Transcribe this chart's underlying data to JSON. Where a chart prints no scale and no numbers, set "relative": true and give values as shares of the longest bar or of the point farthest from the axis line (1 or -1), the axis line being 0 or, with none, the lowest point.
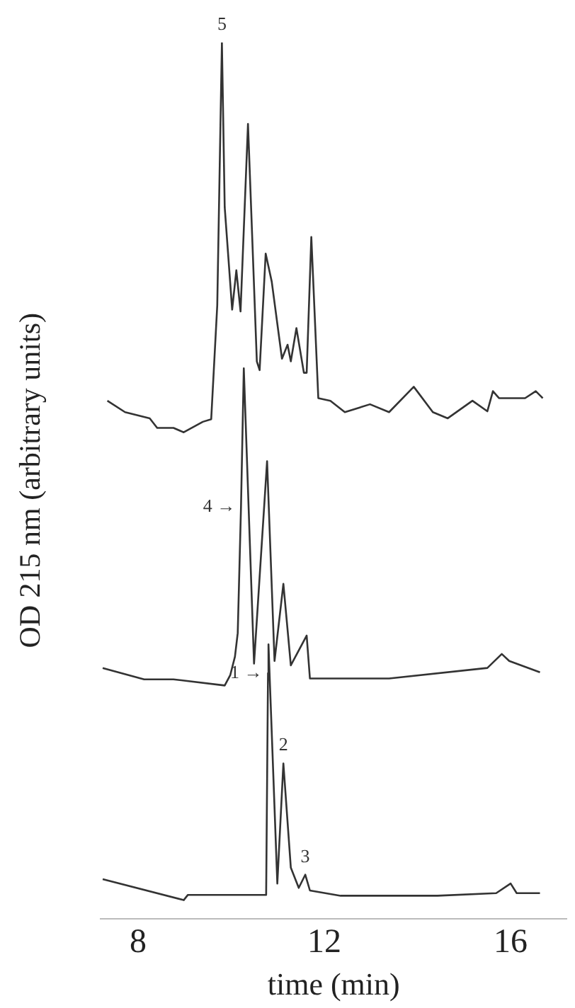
{
  "chart_data": {
    "type": "line",
    "relative": true,
    "xlabel": "time (min)",
    "ylabel": "OD 215 nm (arbitrary units)",
    "xlim": [
      7.2,
      17.2
    ],
    "xticks": [
      8,
      12,
      16
    ],
    "grid": false,
    "legend": false,
    "marker": "none",
    "line_style": "solid",
    "series": [
      {
        "color": "#333333",
        "x": [
          7.34,
          7.72,
          8.25,
          8.41,
          8.76,
          8.98,
          9.39,
          9.57,
          9.7,
          9.8,
          9.86,
          10.02,
          10.11,
          10.2,
          10.36,
          10.55,
          10.61,
          10.74,
          10.87,
          11.09,
          11.21,
          11.28,
          11.4,
          11.56,
          11.62,
          11.72,
          11.87,
          12.13,
          12.44,
          12.98,
          13.39,
          13.92,
          14.33,
          14.65,
          15.18,
          15.5,
          15.62,
          15.75,
          16.31,
          16.54,
          16.69
        ],
        "values": [
          0.591,
          0.578,
          0.571,
          0.56,
          0.56,
          0.555,
          0.567,
          0.57,
          0.7,
          1.0,
          0.812,
          0.695,
          0.74,
          0.693,
          0.907,
          0.636,
          0.626,
          0.759,
          0.727,
          0.639,
          0.655,
          0.636,
          0.674,
          0.623,
          0.623,
          0.778,
          0.594,
          0.591,
          0.578,
          0.587,
          0.578,
          0.607,
          0.578,
          0.571,
          0.591,
          0.579,
          0.602,
          0.594,
          0.594,
          0.602,
          0.594
        ]
      },
      {
        "color": "#333333",
        "x": [
          7.24,
          8.13,
          8.76,
          9.86,
          9.98,
          10.08,
          10.14,
          10.21,
          10.27,
          10.49,
          10.77,
          10.93,
          11.12,
          11.28,
          11.62,
          11.69,
          13.39,
          15.5,
          15.81,
          15.97,
          16.63
        ],
        "values": [
          0.286,
          0.273,
          0.273,
          0.266,
          0.278,
          0.299,
          0.326,
          0.47,
          0.628,
          0.291,
          0.522,
          0.294,
          0.382,
          0.289,
          0.323,
          0.274,
          0.274,
          0.286,
          0.302,
          0.294,
          0.281
        ]
      },
      {
        "color": "#333333",
        "x": [
          7.24,
          8.98,
          9.07,
          10.14,
          10.75,
          10.79,
          10.8,
          10.99,
          11.12,
          11.28,
          11.45,
          11.59,
          11.69,
          12.35,
          14.43,
          15.69,
          16.0,
          16.13,
          16.63
        ],
        "values": [
          0.045,
          0.021,
          0.027,
          0.027,
          0.027,
          0.28,
          0.313,
          0.04,
          0.177,
          0.058,
          0.035,
          0.05,
          0.032,
          0.026,
          0.026,
          0.029,
          0.04,
          0.029,
          0.029
        ]
      }
    ],
    "annotations": [
      {
        "text": "5",
        "x": 9.8,
        "y": 1.0
      },
      {
        "text": "4 →",
        "x": 10.21,
        "y": 0.47
      },
      {
        "text": "1 →",
        "x": 10.79,
        "y": 0.28
      },
      {
        "text": "2",
        "x": 11.12,
        "y": 0.177
      },
      {
        "text": "3",
        "x": 11.59,
        "y": 0.05
      }
    ]
  }
}
